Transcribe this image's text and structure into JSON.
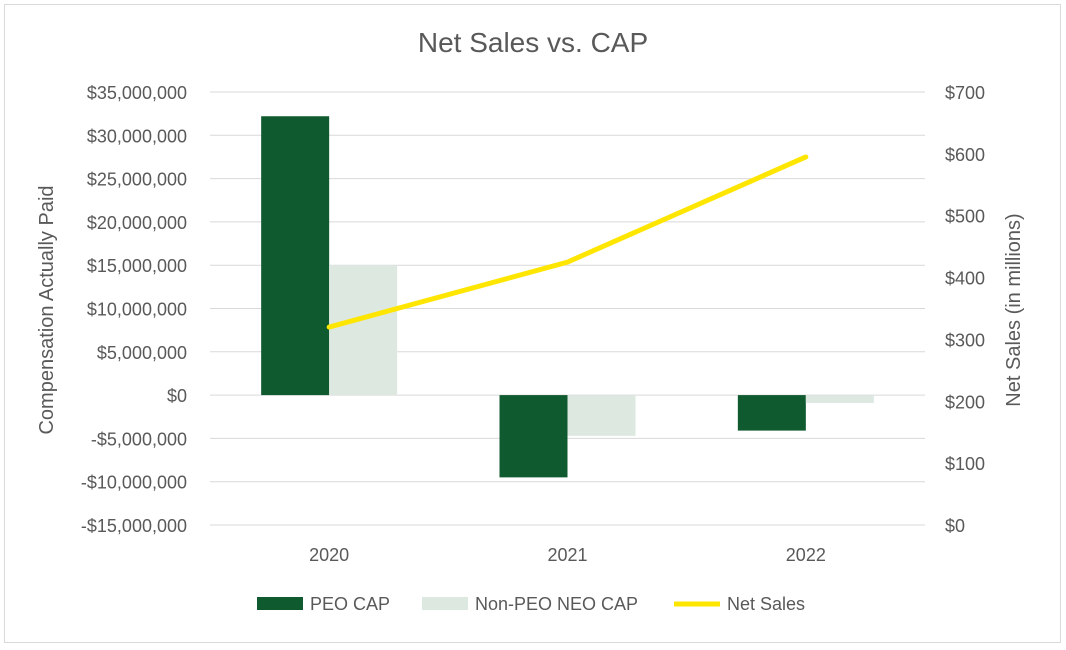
{
  "chart_data": {
    "type": "bar",
    "title": "Net Sales vs. CAP",
    "categories": [
      "2020",
      "2021",
      "2022"
    ],
    "ylabel": "Compensation Actually Paid",
    "y2label": "Net Sales (in millions)",
    "ylim": [
      -15000000,
      35000000
    ],
    "yticks": [
      35000000,
      30000000,
      25000000,
      20000000,
      15000000,
      10000000,
      5000000,
      0,
      -5000000,
      -10000000,
      -15000000
    ],
    "ytick_labels": [
      "$35,000,000",
      "$30,000,000",
      "$25,000,000",
      "$20,000,000",
      "$15,000,000",
      "$10,000,000",
      "$5,000,000",
      "$0",
      "-$5,000,000",
      "-$10,000,000",
      "-$15,000,000"
    ],
    "y2lim": [
      0,
      700
    ],
    "y2ticks": [
      700,
      600,
      500,
      400,
      300,
      200,
      100,
      0
    ],
    "y2tick_labels": [
      "$700",
      "$600",
      "$500",
      "$400",
      "$300",
      "$200",
      "$100",
      "$0"
    ],
    "grid": true,
    "legend_position": "bottom",
    "series": [
      {
        "name": "PEO CAP",
        "kind": "bar",
        "axis": "left",
        "color": "#0f5a2f",
        "values": [
          32200000,
          -9500000,
          -4100000
        ]
      },
      {
        "name": "Non-PEO NEO CAP",
        "kind": "bar",
        "axis": "left",
        "color": "#dde8e1",
        "values": [
          15000000,
          -4700000,
          -900000
        ]
      },
      {
        "name": "Net Sales",
        "kind": "line",
        "axis": "right",
        "color": "#ffe600",
        "values": [
          320,
          425,
          595
        ]
      }
    ],
    "colors": {
      "axis_text": "#595959",
      "grid": "#d9d9d9",
      "title": "#595959"
    }
  }
}
